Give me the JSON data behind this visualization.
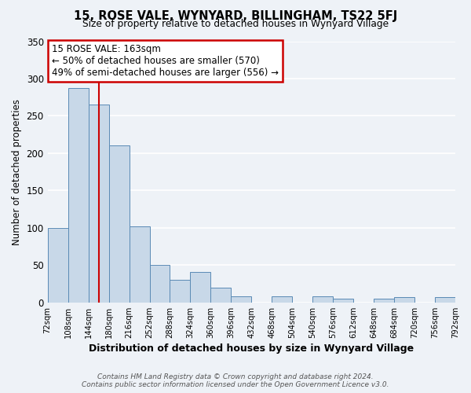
{
  "title": "15, ROSE VALE, WYNYARD, BILLINGHAM, TS22 5FJ",
  "subtitle": "Size of property relative to detached houses in Wynyard Village",
  "xlabel": "Distribution of detached houses by size in Wynyard Village",
  "ylabel": "Number of detached properties",
  "bin_edges": [
    72,
    108,
    144,
    180,
    216,
    252,
    288,
    324,
    360,
    396,
    432,
    468,
    504,
    540,
    576,
    612,
    648,
    684,
    720,
    756,
    792
  ],
  "bar_heights": [
    100,
    287,
    265,
    210,
    102,
    50,
    30,
    41,
    20,
    8,
    0,
    8,
    0,
    8,
    5,
    0,
    5,
    7,
    0,
    7
  ],
  "bar_color": "#c8d8e8",
  "bar_edge_color": "#5a8ab5",
  "vline_x": 163,
  "vline_color": "#cc0000",
  "ylim": [
    0,
    350
  ],
  "yticks": [
    0,
    50,
    100,
    150,
    200,
    250,
    300,
    350
  ],
  "annotation_title": "15 ROSE VALE: 163sqm",
  "annotation_line1": "← 50% of detached houses are smaller (570)",
  "annotation_line2": "49% of semi-detached houses are larger (556) →",
  "annotation_box_color": "#ffffff",
  "annotation_box_edge": "#cc0000",
  "footer_line1": "Contains HM Land Registry data © Crown copyright and database right 2024.",
  "footer_line2": "Contains public sector information licensed under the Open Government Licence v3.0.",
  "background_color": "#eef2f7",
  "grid_color": "#ffffff",
  "tick_labels": [
    "72sqm",
    "108sqm",
    "144sqm",
    "180sqm",
    "216sqm",
    "252sqm",
    "288sqm",
    "324sqm",
    "360sqm",
    "396sqm",
    "432sqm",
    "468sqm",
    "504sqm",
    "540sqm",
    "576sqm",
    "612sqm",
    "648sqm",
    "684sqm",
    "720sqm",
    "756sqm",
    "792sqm"
  ]
}
